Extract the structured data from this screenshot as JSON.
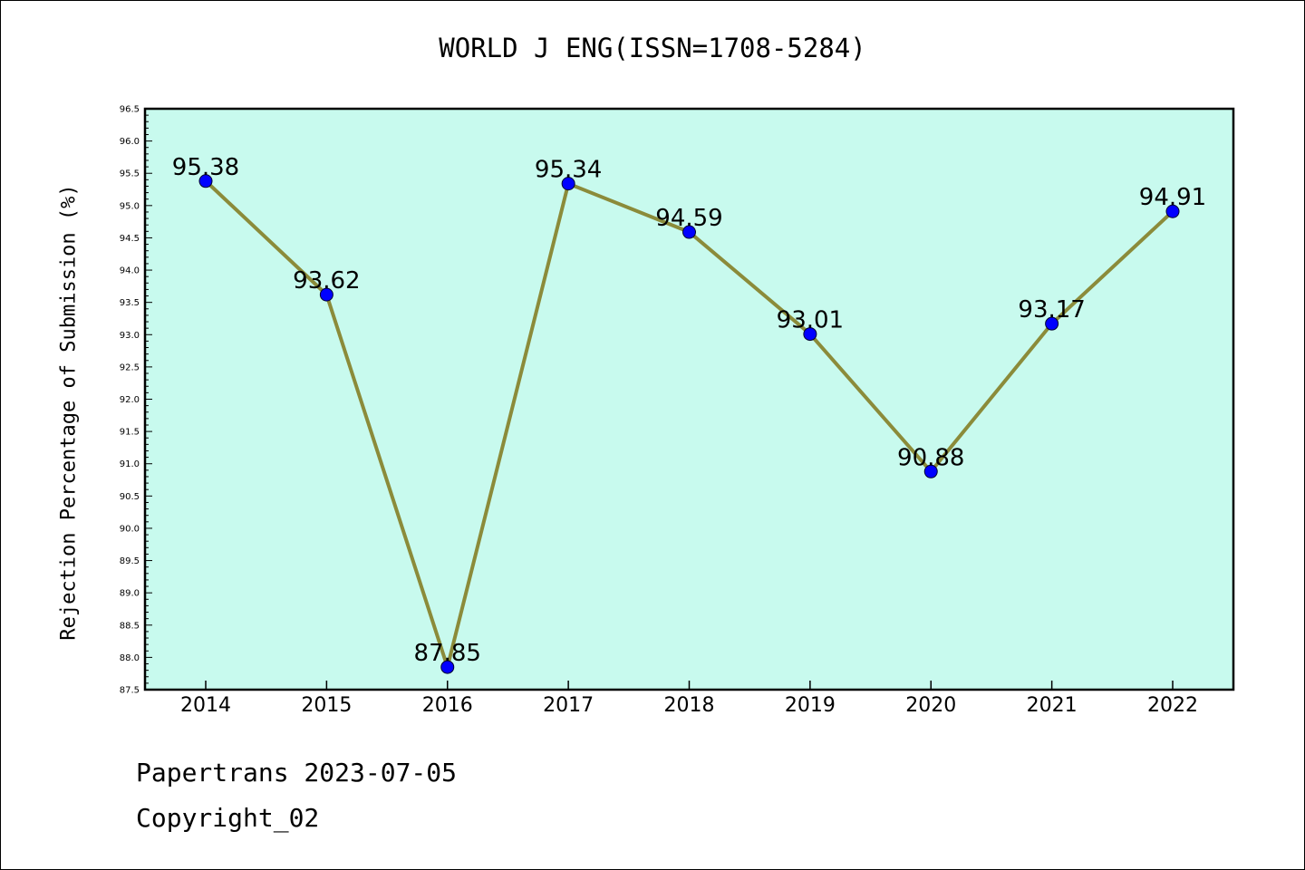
{
  "chart_data": {
    "type": "line",
    "title": "WORLD J ENG(ISSN=1708-5284)",
    "xlabel": "",
    "ylabel": "Rejection Percentage of Submission (%)",
    "categories": [
      "2014",
      "2015",
      "2016",
      "2017",
      "2018",
      "2019",
      "2020",
      "2021",
      "2022"
    ],
    "series": [
      {
        "values": [
          95.38,
          93.62,
          87.85,
          95.34,
          94.59,
          93.01,
          90.88,
          93.17,
          94.91
        ],
        "labels": [
          "95.38",
          "93.62",
          "87.85",
          "95.34",
          "94.59",
          "93.01",
          "90.88",
          "93.17",
          "94.91"
        ],
        "line_color": "#8B8B3A",
        "marker_color": "#0000FF"
      }
    ],
    "ylim": [
      87.5,
      96.5
    ],
    "yticks": [
      "87.5",
      "88.0",
      "88.5",
      "89.0",
      "89.5",
      "90.0",
      "90.5",
      "91.0",
      "91.5",
      "92.0",
      "92.5",
      "93.0",
      "93.5",
      "94.0",
      "94.5",
      "95.0",
      "95.5",
      "96.0",
      "96.5"
    ],
    "plot_background": "#C8FAEE",
    "grid": false,
    "legend": "none"
  },
  "footer": {
    "line1": "Papertrans 2023-07-05",
    "line2": "Copyright_02"
  }
}
